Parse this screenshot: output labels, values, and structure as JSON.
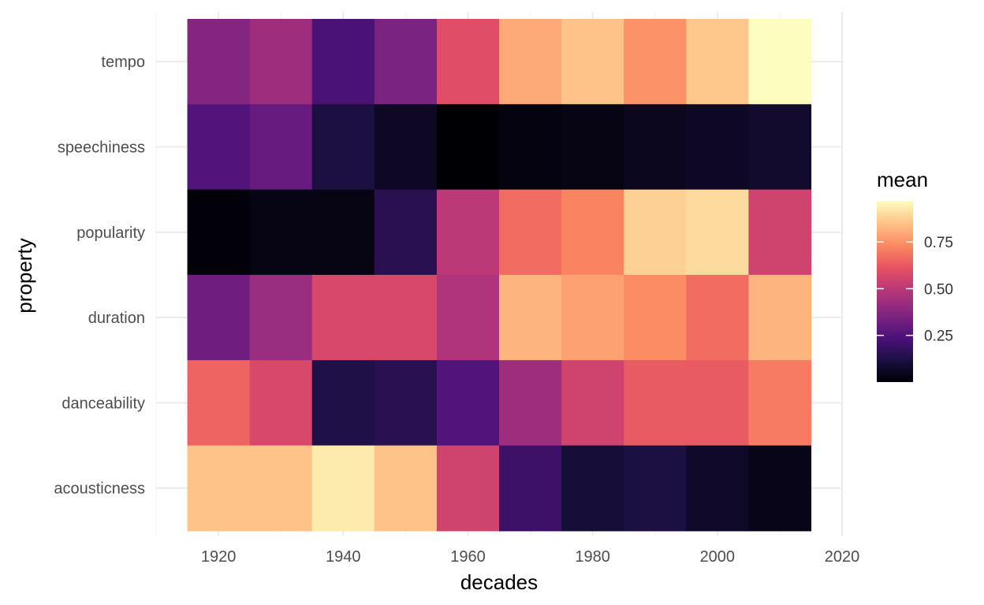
{
  "chart_data": {
    "type": "heatmap",
    "xlabel": "decades",
    "ylabel": "property",
    "x_ticks": [
      1920,
      1940,
      1960,
      1980,
      2000,
      2020
    ],
    "xlim": [
      1910,
      2020
    ],
    "x": [
      1920,
      1930,
      1940,
      1950,
      1960,
      1970,
      1980,
      1990,
      2000,
      2010
    ],
    "y": [
      "acousticness",
      "danceability",
      "duration",
      "popularity",
      "speechiness",
      "tempo"
    ],
    "values": {
      "acousticness": [
        0.85,
        0.85,
        0.93,
        0.85,
        0.55,
        0.2,
        0.1,
        0.12,
        0.07,
        0.04
      ],
      "danceability": [
        0.65,
        0.57,
        0.13,
        0.15,
        0.25,
        0.43,
        0.55,
        0.63,
        0.63,
        0.7
      ],
      "duration": [
        0.32,
        0.42,
        0.57,
        0.57,
        0.47,
        0.82,
        0.78,
        0.74,
        0.67,
        0.82
      ],
      "popularity": [
        0.01,
        0.03,
        0.03,
        0.15,
        0.5,
        0.67,
        0.72,
        0.88,
        0.9,
        0.55
      ],
      "speechiness": [
        0.25,
        0.3,
        0.12,
        0.06,
        0.0,
        0.02,
        0.03,
        0.05,
        0.06,
        0.08
      ],
      "tempo": [
        0.37,
        0.43,
        0.23,
        0.35,
        0.59,
        0.8,
        0.85,
        0.75,
        0.86,
        0.97
      ]
    },
    "legend": {
      "title": "mean",
      "ticks": [
        0.25,
        0.5,
        0.75
      ],
      "tick_labels": [
        "0.25",
        "0.50",
        "0.75"
      ],
      "range": [
        0,
        0.97
      ],
      "placement": "right"
    },
    "colormap": [
      "#000004",
      "#1c1044",
      "#4f127b",
      "#812581",
      "#b5367a",
      "#e55064",
      "#fb8761",
      "#fec287",
      "#fcfdbf"
    ],
    "grid": true
  }
}
